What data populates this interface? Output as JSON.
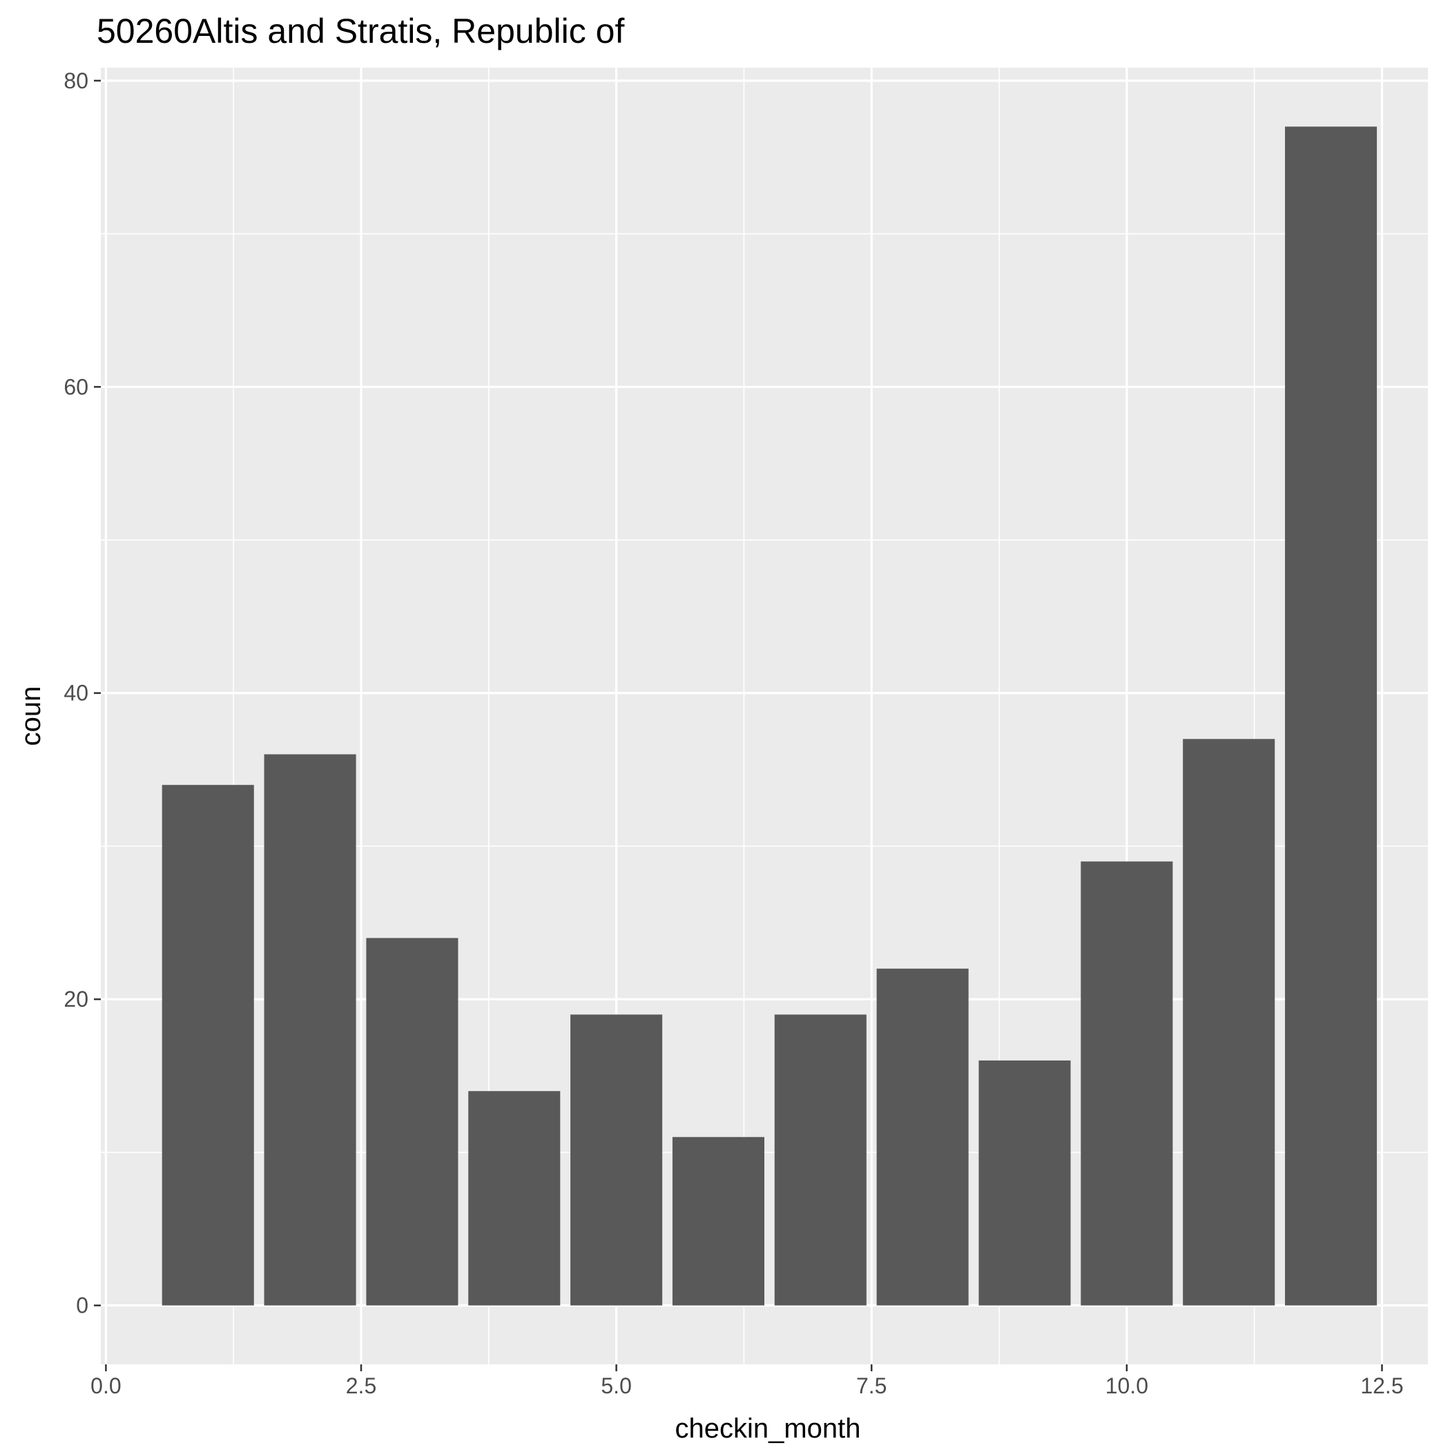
{
  "chart_data": {
    "type": "bar",
    "title": "50260Altis and Stratis, Republic of",
    "xlabel": "checkin_month",
    "ylabel": "coun",
    "x": [
      1,
      2,
      3,
      4,
      5,
      6,
      7,
      8,
      9,
      10,
      11,
      12
    ],
    "values": [
      34,
      36,
      24,
      14,
      19,
      11,
      19,
      22,
      16,
      29,
      37,
      77
    ],
    "xlim": [
      -0.05,
      12.95
    ],
    "ylim": [
      -3.85,
      80.85
    ],
    "x_ticks": [
      0.0,
      2.5,
      5.0,
      7.5,
      10.0,
      12.5
    ],
    "x_tick_labels": [
      "0.0",
      "2.5",
      "5.0",
      "7.5",
      "10.0",
      "12.5"
    ],
    "y_ticks": [
      0,
      20,
      40,
      60,
      80
    ],
    "y_tick_labels": [
      "0",
      "20",
      "40",
      "60",
      "80"
    ],
    "grid": true,
    "colors": {
      "panel_background": "#EBEBEB",
      "grid_line": "#FFFFFF",
      "bar_fill": "#595959",
      "tick_text": "#4D4D4D",
      "axis_tick": "#333333"
    }
  }
}
